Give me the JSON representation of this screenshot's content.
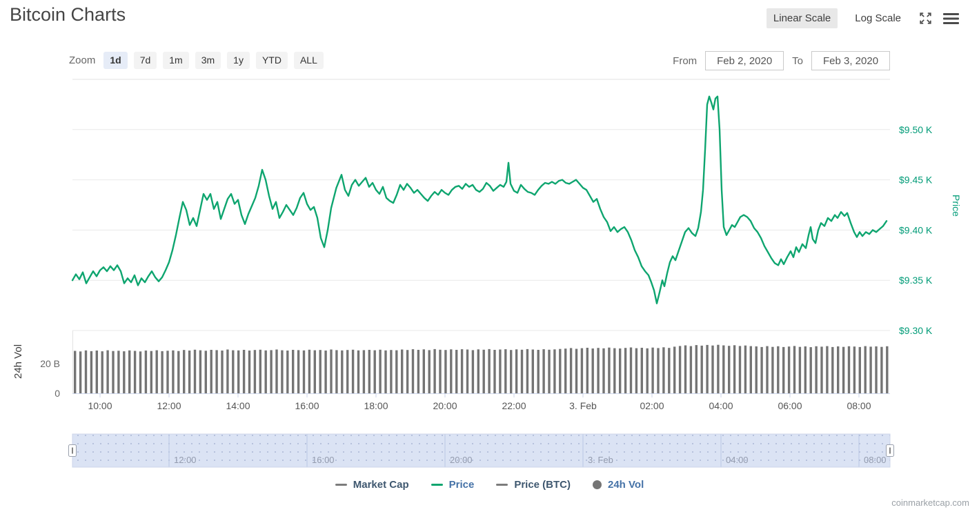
{
  "header": {
    "title": "Bitcoin Charts",
    "scale_toggle": {
      "linear_label": "Linear Scale",
      "log_label": "Log Scale",
      "active": "linear"
    }
  },
  "toolbar": {
    "zoom_label": "Zoom",
    "zoom_active": "1d",
    "zoom_options": [
      {
        "label": "1d"
      },
      {
        "label": "7d"
      },
      {
        "label": "1m"
      },
      {
        "label": "3m"
      },
      {
        "label": "1y"
      },
      {
        "label": "YTD"
      },
      {
        "label": "ALL"
      }
    ],
    "from_label": "From",
    "from_value": "Feb 2, 2020",
    "to_label": "To",
    "to_value": "Feb 3, 2020"
  },
  "legend": {
    "items": [
      {
        "label": "Market Cap",
        "symbol": "line",
        "symbol_color": "#7c7c7c",
        "label_color": "#3E576F"
      },
      {
        "label": "Price",
        "symbol": "line",
        "symbol_color": "#0EA56F",
        "label_color": "#4572A7"
      },
      {
        "label": "Price (BTC)",
        "symbol": "line",
        "symbol_color": "#7c7c7c",
        "label_color": "#3E576F"
      },
      {
        "label": "24h Vol",
        "symbol": "circle",
        "symbol_color": "#757575",
        "label_color": "#4572A7"
      }
    ]
  },
  "footer": {
    "watermark": "coinmarketcap.com"
  },
  "chart_data": {
    "type": "line",
    "title": "Bitcoin price (USD) with 24h volume, Feb 2 - Feb 3 2020",
    "colors": {
      "price_line": "#0EA56F",
      "price_axis_text": "#009B77",
      "volume_bar": "#747474",
      "grid": "#e9e9e9",
      "axis_line": "#ccd6eb",
      "navigator_fill": "#dbe3f4",
      "navigator_grid": "#bac7e3",
      "navigator_outline": "#cdd6ea",
      "navigator_label": "#939bae",
      "tick_text": "#555555"
    },
    "price_axis": {
      "title": "Price",
      "labels": [
        "$9.50 K",
        "$9.45 K",
        "$9.40 K",
        "$9.35 K",
        "$9.30 K"
      ],
      "values": [
        9.5,
        9.45,
        9.4,
        9.35,
        9.3
      ],
      "range": [
        9.3,
        9.55
      ],
      "grid": true
    },
    "volume_axis": {
      "title": "24h Vol",
      "labels": [
        "20 B",
        "0"
      ],
      "values": [
        20,
        0
      ],
      "range": [
        0,
        42.3
      ]
    },
    "x_axis": {
      "range_hours": [
        9.2,
        32.9
      ],
      "ticks": [
        {
          "t": 10,
          "label": "10:00"
        },
        {
          "t": 12,
          "label": "12:00"
        },
        {
          "t": 14,
          "label": "14:00"
        },
        {
          "t": 16,
          "label": "16:00"
        },
        {
          "t": 18,
          "label": "18:00"
        },
        {
          "t": 20,
          "label": "20:00"
        },
        {
          "t": 22,
          "label": "22:00"
        },
        {
          "t": 24,
          "label": "3. Feb"
        },
        {
          "t": 26,
          "label": "02:00"
        },
        {
          "t": 28,
          "label": "04:00"
        },
        {
          "t": 30,
          "label": "06:00"
        },
        {
          "t": 32,
          "label": "08:00"
        }
      ]
    },
    "navigator": {
      "ticks": [
        {
          "t": 12,
          "label": "12:00"
        },
        {
          "t": 16,
          "label": "16:00"
        },
        {
          "t": 20,
          "label": "20:00"
        },
        {
          "t": 24,
          "label": "3. Feb"
        },
        {
          "t": 28,
          "label": "04:00"
        },
        {
          "t": 32,
          "label": "08:00"
        }
      ]
    },
    "price_series": {
      "name": "Price",
      "unit": "USD thousands",
      "points": [
        [
          9.2,
          9.35
        ],
        [
          9.3,
          9.356
        ],
        [
          9.4,
          9.351
        ],
        [
          9.5,
          9.358
        ],
        [
          9.6,
          9.347
        ],
        [
          9.7,
          9.353
        ],
        [
          9.8,
          9.359
        ],
        [
          9.9,
          9.354
        ],
        [
          10.0,
          9.36
        ],
        [
          10.1,
          9.363
        ],
        [
          10.2,
          9.359
        ],
        [
          10.3,
          9.364
        ],
        [
          10.4,
          9.36
        ],
        [
          10.5,
          9.365
        ],
        [
          10.6,
          9.359
        ],
        [
          10.7,
          9.347
        ],
        [
          10.8,
          9.352
        ],
        [
          10.9,
          9.348
        ],
        [
          11.0,
          9.355
        ],
        [
          11.1,
          9.345
        ],
        [
          11.2,
          9.352
        ],
        [
          11.3,
          9.348
        ],
        [
          11.4,
          9.354
        ],
        [
          11.5,
          9.359
        ],
        [
          11.6,
          9.353
        ],
        [
          11.7,
          9.349
        ],
        [
          11.8,
          9.353
        ],
        [
          11.9,
          9.36
        ],
        [
          12.0,
          9.368
        ],
        [
          12.1,
          9.38
        ],
        [
          12.2,
          9.395
        ],
        [
          12.3,
          9.412
        ],
        [
          12.4,
          9.428
        ],
        [
          12.5,
          9.42
        ],
        [
          12.6,
          9.405
        ],
        [
          12.7,
          9.412
        ],
        [
          12.8,
          9.404
        ],
        [
          12.9,
          9.42
        ],
        [
          13.0,
          9.436
        ],
        [
          13.1,
          9.43
        ],
        [
          13.2,
          9.436
        ],
        [
          13.3,
          9.421
        ],
        [
          13.4,
          9.428
        ],
        [
          13.5,
          9.411
        ],
        [
          13.6,
          9.421
        ],
        [
          13.7,
          9.431
        ],
        [
          13.8,
          9.436
        ],
        [
          13.9,
          9.426
        ],
        [
          14.0,
          9.43
        ],
        [
          14.1,
          9.415
        ],
        [
          14.2,
          9.406
        ],
        [
          14.3,
          9.416
        ],
        [
          14.4,
          9.424
        ],
        [
          14.5,
          9.432
        ],
        [
          14.6,
          9.444
        ],
        [
          14.7,
          9.46
        ],
        [
          14.8,
          9.45
        ],
        [
          14.9,
          9.434
        ],
        [
          15.0,
          9.421
        ],
        [
          15.1,
          9.428
        ],
        [
          15.2,
          9.412
        ],
        [
          15.3,
          9.418
        ],
        [
          15.4,
          9.425
        ],
        [
          15.5,
          9.42
        ],
        [
          15.6,
          9.415
        ],
        [
          15.7,
          9.422
        ],
        [
          15.8,
          9.432
        ],
        [
          15.9,
          9.437
        ],
        [
          16.0,
          9.426
        ],
        [
          16.1,
          9.42
        ],
        [
          16.2,
          9.423
        ],
        [
          16.3,
          9.412
        ],
        [
          16.4,
          9.392
        ],
        [
          16.5,
          9.383
        ],
        [
          16.6,
          9.4
        ],
        [
          16.7,
          9.422
        ],
        [
          16.85,
          9.442
        ],
        [
          17.0,
          9.455
        ],
        [
          17.1,
          9.44
        ],
        [
          17.2,
          9.434
        ],
        [
          17.3,
          9.445
        ],
        [
          17.4,
          9.45
        ],
        [
          17.5,
          9.444
        ],
        [
          17.6,
          9.448
        ],
        [
          17.7,
          9.452
        ],
        [
          17.8,
          9.443
        ],
        [
          17.9,
          9.447
        ],
        [
          18.0,
          9.44
        ],
        [
          18.1,
          9.436
        ],
        [
          18.2,
          9.443
        ],
        [
          18.3,
          9.432
        ],
        [
          18.4,
          9.429
        ],
        [
          18.5,
          9.427
        ],
        [
          18.6,
          9.435
        ],
        [
          18.7,
          9.445
        ],
        [
          18.8,
          9.44
        ],
        [
          18.9,
          9.446
        ],
        [
          19.0,
          9.442
        ],
        [
          19.1,
          9.437
        ],
        [
          19.2,
          9.44
        ],
        [
          19.3,
          9.436
        ],
        [
          19.4,
          9.432
        ],
        [
          19.5,
          9.429
        ],
        [
          19.6,
          9.434
        ],
        [
          19.7,
          9.438
        ],
        [
          19.8,
          9.435
        ],
        [
          19.9,
          9.44
        ],
        [
          20.0,
          9.437
        ],
        [
          20.1,
          9.435
        ],
        [
          20.2,
          9.44
        ],
        [
          20.3,
          9.443
        ],
        [
          20.4,
          9.444
        ],
        [
          20.5,
          9.441
        ],
        [
          20.6,
          9.446
        ],
        [
          20.7,
          9.443
        ],
        [
          20.8,
          9.445
        ],
        [
          20.9,
          9.44
        ],
        [
          21.0,
          9.438
        ],
        [
          21.1,
          9.441
        ],
        [
          21.2,
          9.447
        ],
        [
          21.3,
          9.444
        ],
        [
          21.4,
          9.439
        ],
        [
          21.5,
          9.442
        ],
        [
          21.6,
          9.445
        ],
        [
          21.7,
          9.443
        ],
        [
          21.78,
          9.448
        ],
        [
          21.84,
          9.467
        ],
        [
          21.9,
          9.446
        ],
        [
          22.0,
          9.439
        ],
        [
          22.1,
          9.437
        ],
        [
          22.2,
          9.445
        ],
        [
          22.3,
          9.441
        ],
        [
          22.4,
          9.438
        ],
        [
          22.5,
          9.437
        ],
        [
          22.6,
          9.435
        ],
        [
          22.7,
          9.44
        ],
        [
          22.8,
          9.444
        ],
        [
          22.9,
          9.447
        ],
        [
          23.0,
          9.446
        ],
        [
          23.1,
          9.448
        ],
        [
          23.2,
          9.446
        ],
        [
          23.3,
          9.449
        ],
        [
          23.4,
          9.45
        ],
        [
          23.5,
          9.447
        ],
        [
          23.6,
          9.446
        ],
        [
          23.7,
          9.448
        ],
        [
          23.8,
          9.45
        ],
        [
          23.9,
          9.446
        ],
        [
          24.0,
          9.442
        ],
        [
          24.1,
          9.44
        ],
        [
          24.2,
          9.434
        ],
        [
          24.3,
          9.428
        ],
        [
          24.4,
          9.431
        ],
        [
          24.5,
          9.421
        ],
        [
          24.6,
          9.413
        ],
        [
          24.7,
          9.408
        ],
        [
          24.8,
          9.399
        ],
        [
          24.9,
          9.403
        ],
        [
          25.0,
          9.398
        ],
        [
          25.1,
          9.401
        ],
        [
          25.2,
          9.403
        ],
        [
          25.3,
          9.398
        ],
        [
          25.4,
          9.39
        ],
        [
          25.5,
          9.38
        ],
        [
          25.6,
          9.373
        ],
        [
          25.7,
          9.364
        ],
        [
          25.8,
          9.359
        ],
        [
          25.9,
          9.355
        ],
        [
          25.98,
          9.348
        ],
        [
          26.06,
          9.34
        ],
        [
          26.14,
          9.327
        ],
        [
          26.22,
          9.338
        ],
        [
          26.3,
          9.35
        ],
        [
          26.36,
          9.344
        ],
        [
          26.44,
          9.357
        ],
        [
          26.52,
          9.368
        ],
        [
          26.6,
          9.374
        ],
        [
          26.68,
          9.37
        ],
        [
          26.76,
          9.378
        ],
        [
          26.86,
          9.388
        ],
        [
          26.96,
          9.398
        ],
        [
          27.06,
          9.402
        ],
        [
          27.16,
          9.397
        ],
        [
          27.26,
          9.394
        ],
        [
          27.34,
          9.402
        ],
        [
          27.42,
          9.418
        ],
        [
          27.48,
          9.44
        ],
        [
          27.54,
          9.48
        ],
        [
          27.6,
          9.525
        ],
        [
          27.66,
          9.533
        ],
        [
          27.72,
          9.527
        ],
        [
          27.78,
          9.52
        ],
        [
          27.84,
          9.531
        ],
        [
          27.9,
          9.533
        ],
        [
          27.96,
          9.5
        ],
        [
          28.02,
          9.44
        ],
        [
          28.08,
          9.403
        ],
        [
          28.16,
          9.395
        ],
        [
          28.24,
          9.4
        ],
        [
          28.32,
          9.405
        ],
        [
          28.4,
          9.403
        ],
        [
          28.48,
          9.408
        ],
        [
          28.56,
          9.413
        ],
        [
          28.66,
          9.415
        ],
        [
          28.76,
          9.413
        ],
        [
          28.86,
          9.409
        ],
        [
          28.96,
          9.402
        ],
        [
          29.06,
          9.398
        ],
        [
          29.16,
          9.392
        ],
        [
          29.26,
          9.384
        ],
        [
          29.36,
          9.378
        ],
        [
          29.46,
          9.372
        ],
        [
          29.56,
          9.367
        ],
        [
          29.66,
          9.365
        ],
        [
          29.74,
          9.371
        ],
        [
          29.82,
          9.366
        ],
        [
          29.92,
          9.373
        ],
        [
          30.02,
          9.379
        ],
        [
          30.1,
          9.373
        ],
        [
          30.18,
          9.383
        ],
        [
          30.26,
          9.378
        ],
        [
          30.36,
          9.386
        ],
        [
          30.46,
          9.382
        ],
        [
          30.54,
          9.395
        ],
        [
          30.6,
          9.403
        ],
        [
          30.66,
          9.391
        ],
        [
          30.74,
          9.387
        ],
        [
          30.82,
          9.4
        ],
        [
          30.9,
          9.407
        ],
        [
          31.0,
          9.404
        ],
        [
          31.1,
          9.412
        ],
        [
          31.2,
          9.409
        ],
        [
          31.3,
          9.415
        ],
        [
          31.38,
          9.412
        ],
        [
          31.48,
          9.418
        ],
        [
          31.58,
          9.414
        ],
        [
          31.66,
          9.417
        ],
        [
          31.76,
          9.407
        ],
        [
          31.86,
          9.398
        ],
        [
          31.94,
          9.393
        ],
        [
          32.02,
          9.398
        ],
        [
          32.1,
          9.394
        ],
        [
          32.2,
          9.398
        ],
        [
          32.3,
          9.396
        ],
        [
          32.4,
          9.4
        ],
        [
          32.5,
          9.398
        ],
        [
          32.6,
          9.401
        ],
        [
          32.7,
          9.404
        ],
        [
          32.8,
          9.409
        ]
      ]
    },
    "volume_series": {
      "name": "24h Vol",
      "unit": "billions USD",
      "values": [
        28.6,
        28.2,
        28.9,
        28.4,
        28.8,
        28.3,
        29.0,
        28.5,
        28.7,
        28.3,
        28.9,
        28.6,
        28.2,
        28.8,
        28.5,
        29.0,
        28.4,
        28.7,
        28.9,
        28.5,
        29.2,
        28.8,
        29.4,
        29.0,
        28.7,
        29.3,
        29.1,
        28.8,
        29.5,
        29.0,
        28.9,
        29.3,
        28.8,
        29.2,
        29.4,
        28.9,
        29.1,
        29.5,
        29.0,
        28.8,
        29.3,
        29.1,
        28.9,
        29.4,
        29.0,
        29.2,
        28.8,
        29.5,
        29.1,
        28.9,
        29.2,
        29.4,
        28.9,
        29.1,
        29.3,
        29.0,
        29.4,
        28.9,
        29.2,
        29.0,
        29.5,
        29.2,
        29.7,
        29.3,
        29.6,
        29.1,
        29.8,
        29.4,
        29.2,
        29.6,
        29.3,
        29.7,
        29.5,
        29.1,
        29.6,
        29.4,
        29.8,
        29.3,
        29.5,
        29.7,
        29.2,
        29.6,
        29.4,
        29.8,
        29.5,
        29.3,
        29.7,
        29.4,
        29.6,
        29.9,
        30.1,
        30.5,
        30.0,
        30.4,
        30.7,
        30.2,
        30.6,
        30.3,
        30.8,
        30.4,
        30.2,
        30.6,
        30.9,
        30.4,
        30.7,
        30.3,
        30.8,
        30.5,
        31.0,
        30.6,
        31.4,
        31.9,
        32.3,
        31.8,
        32.5,
        32.1,
        32.6,
        32.2,
        32.7,
        32.3,
        32.0,
        32.4,
        31.9,
        32.2,
        31.8,
        31.6,
        31.2,
        31.8,
        31.3,
        31.7,
        31.2,
        31.5,
        31.9,
        31.3,
        31.6,
        31.1,
        31.7,
        31.4,
        31.8,
        31.2,
        31.6,
        31.3,
        31.7,
        31.5,
        31.2,
        31.8,
        31.4,
        31.6,
        31.3,
        31.7
      ]
    }
  }
}
